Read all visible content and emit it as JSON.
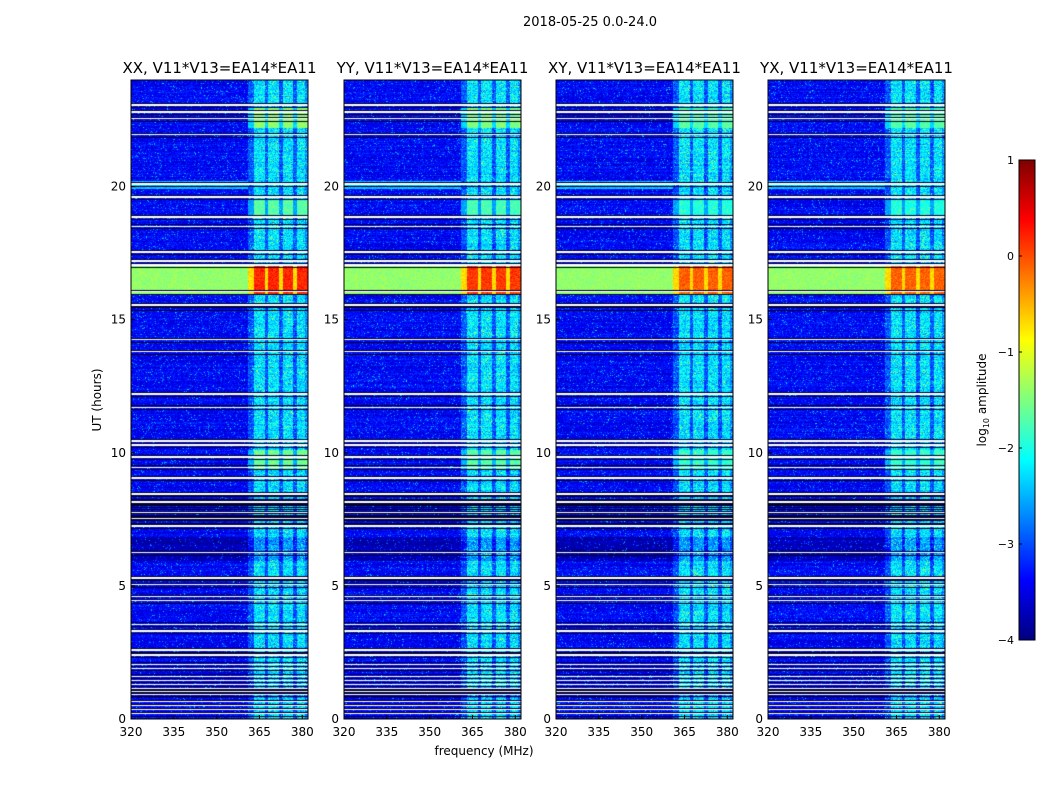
{
  "figure": {
    "suptitle": "2018-05-25 0.0-24.0",
    "xlabel": "frequency (MHz)",
    "ylabel": "UT (hours)",
    "colorbar_label_prefix": "log",
    "colorbar_label_sub": "10",
    "colorbar_label_suffix": " amplitude"
  },
  "chart_data": {
    "type": "heatmap",
    "x_unit": "MHz",
    "y_unit": "hours",
    "xlim": [
      320,
      382
    ],
    "ylim": [
      0,
      24
    ],
    "xticks": [
      320,
      335,
      350,
      365,
      380
    ],
    "yticks": [
      0,
      5,
      10,
      15,
      20
    ],
    "colorbar": {
      "label": "log10 amplitude",
      "range": [
        -4,
        1
      ],
      "ticks": [
        1,
        0,
        -1,
        -2,
        -3,
        -4
      ],
      "colormap": "jet",
      "colors": [
        "#00007f",
        "#0000ff",
        "#007fff",
        "#00ffff",
        "#7fff7f",
        "#ffff00",
        "#ff7f00",
        "#ff0000",
        "#7f0000"
      ]
    },
    "background_level": -3.4,
    "rfi_band_MHz": [
      361,
      381
    ],
    "rfi_channels_MHz": [
      {
        "center": 365,
        "width": 3.8
      },
      {
        "center": 370,
        "width": 3.8
      },
      {
        "center": 375,
        "width": 3.8
      },
      {
        "center": 380,
        "width": 3.8
      }
    ],
    "gap_hours": [
      0.2,
      0.35,
      0.5,
      0.65,
      0.95,
      1.05,
      1.15,
      1.3,
      1.45,
      1.6,
      1.9,
      2.05,
      2.4,
      2.6,
      3.3,
      3.55,
      4.45,
      4.6,
      5.05,
      5.2,
      5.3,
      6.25,
      7.25,
      7.45,
      7.55,
      7.65,
      7.75,
      7.95,
      8.05,
      8.15,
      8.35,
      8.45,
      9.05,
      9.45,
      9.85,
      10.3,
      10.45,
      11.7,
      12.2,
      13.8,
      14.25,
      15.45,
      15.55,
      16.05,
      17.05,
      17.2,
      17.55,
      18.5,
      18.85,
      19.6,
      20.1,
      21.95,
      22.55,
      22.8,
      23.05
    ],
    "dark_bands_hours": [
      [
        0.8,
        1.15
      ],
      [
        5.95,
        6.85
      ],
      [
        23.05,
        23.15
      ]
    ],
    "events": [
      {
        "name": "broadband_burst",
        "t_start": 15.95,
        "t_end": 17.05,
        "broadband_level": -1.4,
        "rfi_level": 0.2
      },
      {
        "name": "bright_rfi",
        "t_start": 22.2,
        "t_end": 23.0,
        "rfi_level": -1.4
      },
      {
        "name": "bright_rfi",
        "t_start": 18.8,
        "t_end": 19.5,
        "rfi_level": -1.7
      },
      {
        "name": "bright_rfi",
        "t_start": 9.4,
        "t_end": 10.1,
        "rfi_level": -1.6
      },
      {
        "name": "faint_broadband",
        "t_start": 19.9,
        "t_end": 20.2,
        "broadband_level": -2.4
      }
    ],
    "panels": [
      {
        "title": "XX, V11*V13=EA14*EA11",
        "polarization": "XX",
        "rfi_scale": 1.0
      },
      {
        "title": "YY, V11*V13=EA14*EA11",
        "polarization": "YY",
        "rfi_scale": 0.95
      },
      {
        "title": "XY, V11*V13=EA14*EA11",
        "polarization": "XY",
        "rfi_scale": 0.85
      },
      {
        "title": "YX, V11*V13=EA14*EA11",
        "polarization": "YX",
        "rfi_scale": 0.85
      }
    ]
  }
}
